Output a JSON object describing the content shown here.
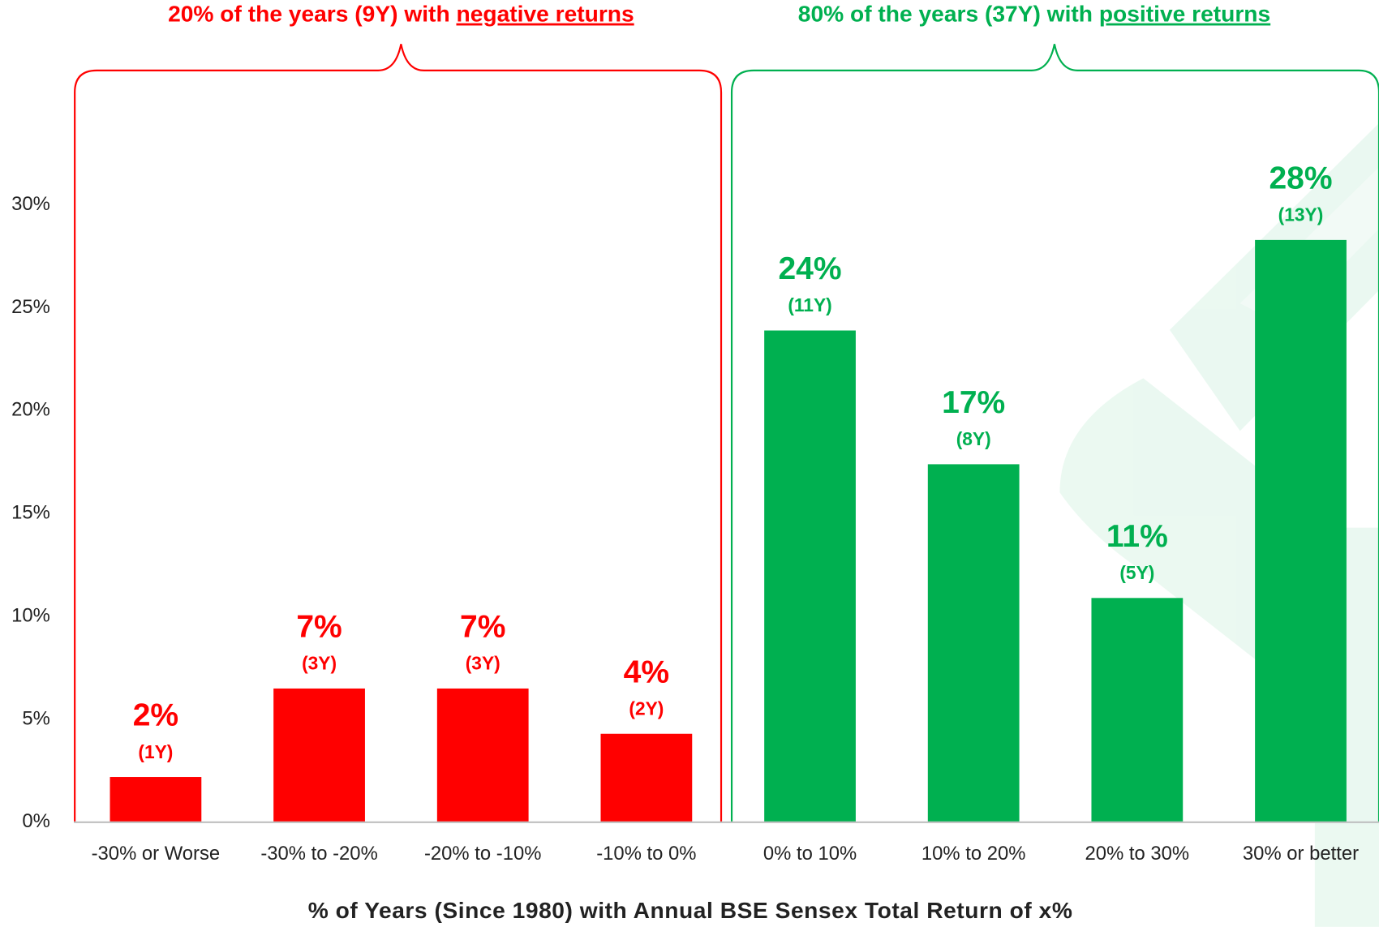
{
  "chart_data": {
    "type": "bar",
    "x_label": "% of Years (Since 1980) with Annual BSE Sensex Total Return of x%",
    "categories": [
      "-30% or Worse",
      "-30% to -20%",
      "-20% to -10%",
      "-10% to 0%",
      "0% to 10%",
      "10% to 20%",
      "20% to 30%",
      "30% or better"
    ],
    "values": [
      2.2,
      6.5,
      6.5,
      4.3,
      23.9,
      17.4,
      10.9,
      28.3
    ],
    "value_labels": [
      "2%",
      "7%",
      "7%",
      "4%",
      "24%",
      "17%",
      "11%",
      "28%"
    ],
    "year_labels": [
      "(1Y)",
      "(3Y)",
      "(3Y)",
      "(2Y)",
      "(11Y)",
      "(8Y)",
      "(5Y)",
      "(13Y)"
    ],
    "colors": [
      "#ff0000",
      "#ff0000",
      "#ff0000",
      "#ff0000",
      "#00b050",
      "#00b050",
      "#00b050",
      "#00b050"
    ],
    "ylim": [
      0,
      35
    ],
    "yticks": [
      {
        "value": 0,
        "label": "0%"
      },
      {
        "value": 5,
        "label": "5%"
      },
      {
        "value": 10,
        "label": "10%"
      },
      {
        "value": 15,
        "label": "15%"
      },
      {
        "value": 20,
        "label": "20%"
      },
      {
        "value": 25,
        "label": "25%"
      },
      {
        "value": 30,
        "label": "30%"
      }
    ],
    "grid": false,
    "annotations": [
      {
        "prefix": "20% of the years (9Y) with ",
        "emphasis": "negative returns",
        "color": "#ff0000"
      },
      {
        "prefix": "80% of the years (37Y) with ",
        "emphasis": "positive returns",
        "color": "#00b050"
      }
    ]
  }
}
